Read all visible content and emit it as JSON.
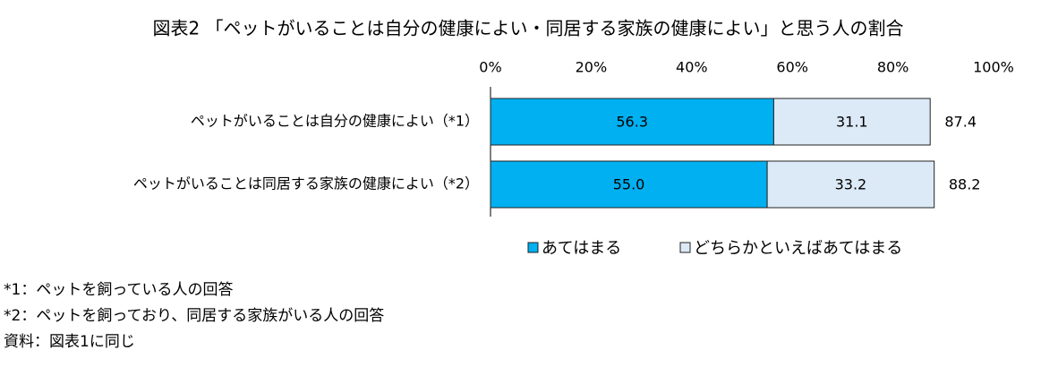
{
  "chart_data": {
    "type": "stacked-bar-horizontal",
    "title": "図表2 「ペットがいることは自分の健康によい・同居する家族の健康によい」と思う人の割合",
    "categories": [
      "ペットがいることは自分の健康によい（*1）",
      "ペットがいることは同居する家族の健康によい（*2）"
    ],
    "series": [
      {
        "name": "あてはまる",
        "color": "#00b0f0",
        "values": [
          56.3,
          55
        ],
        "value_labels": [
          "56.3",
          "55.0"
        ]
      },
      {
        "name": "どちらかといえばあてはまる",
        "color": "#dce9f7",
        "values": [
          31.1,
          33.2
        ]
      }
    ],
    "totals": [
      87.4,
      88.2
    ],
    "xlim": [
      0,
      100
    ],
    "xticks": [
      {
        "value": 0,
        "label": "0%"
      },
      {
        "value": 20,
        "label": "20%"
      },
      {
        "value": 40,
        "label": "40%"
      },
      {
        "value": 60,
        "label": "60%"
      },
      {
        "value": 80,
        "label": "80%"
      },
      {
        "value": 100,
        "label": "100%"
      }
    ],
    "notes": [
      "*1：ペットを飼っている人の回答",
      "*2：ペットを飼っており、同居する家族がいる人の回答",
      "資料：図表1に同じ"
    ]
  }
}
